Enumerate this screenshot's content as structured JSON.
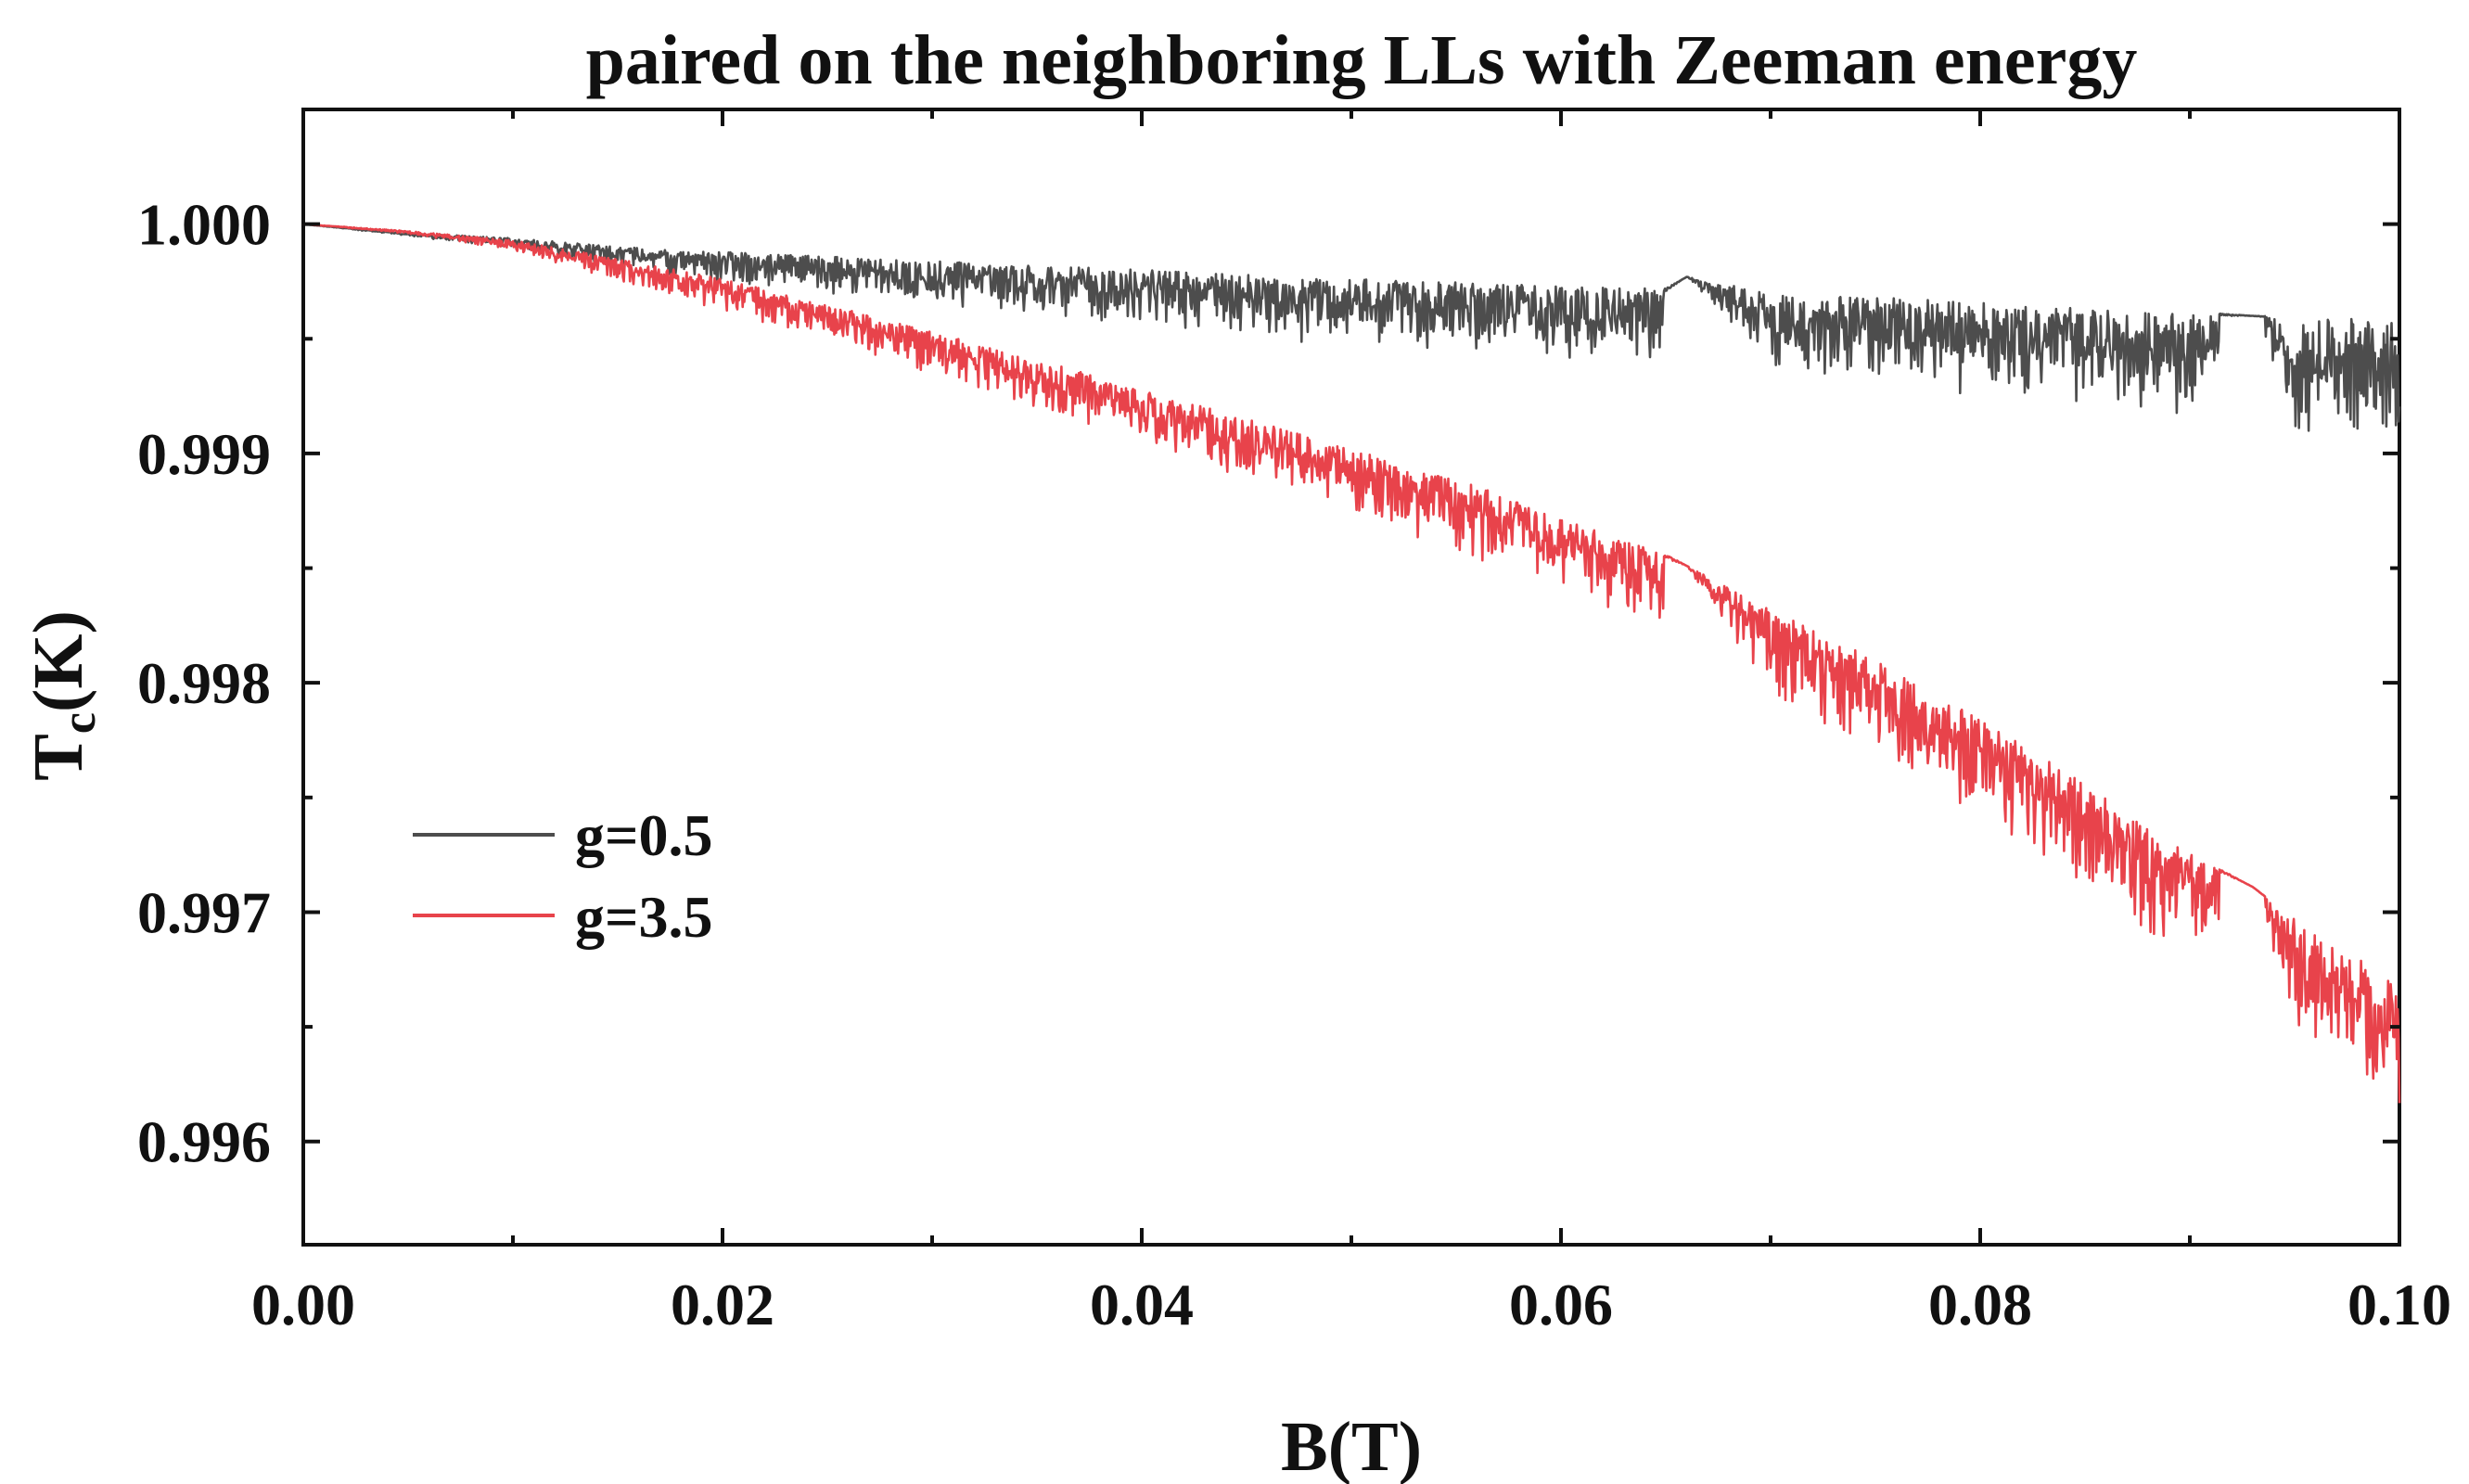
{
  "chart_data": {
    "type": "line",
    "title": "paired on the neighboring LLs with Zeeman energy",
    "xlabel": "B(T)",
    "ylabel_main": "T",
    "ylabel_sub": "c",
    "ylabel_tail": "(K)",
    "xlim": [
      0.0,
      0.1
    ],
    "ylim": [
      0.99555,
      1.0005
    ],
    "x_ticks": [
      0.0,
      0.02,
      0.04,
      0.06,
      0.08,
      0.1
    ],
    "x_tick_labels": [
      "0.00",
      "0.02",
      "0.04",
      "0.06",
      "0.08",
      "0.10"
    ],
    "y_ticks": [
      0.996,
      0.997,
      0.998,
      0.999,
      1.0
    ],
    "y_tick_labels": [
      "0.996",
      "0.997",
      "0.998",
      "0.999",
      "1.000"
    ],
    "grid": false,
    "legend_position": "center-left",
    "series": [
      {
        "name": "g=0.5",
        "color": "#4d4d4d",
        "x": [
          0.0,
          0.005,
          0.01,
          0.015,
          0.02,
          0.025,
          0.03,
          0.035,
          0.04,
          0.045,
          0.05,
          0.055,
          0.06,
          0.065,
          0.066,
          0.07,
          0.075,
          0.08,
          0.085,
          0.09,
          0.093,
          0.095,
          0.1
        ],
        "y": [
          1.0,
          0.99996,
          0.99994,
          0.9999,
          0.99988,
          0.99986,
          0.99984,
          0.99982,
          0.9998,
          0.99978,
          0.99976,
          0.99975,
          0.99973,
          0.99972,
          0.99977,
          0.9997,
          0.99968,
          0.99966,
          0.99964,
          0.99962,
          0.9996,
          0.9996,
          0.99958
        ],
        "spread": [
          0.0,
          1e-05,
          4e-05,
          8e-05,
          0.00012,
          0.00014,
          0.00016,
          0.00018,
          0.0002,
          0.00022,
          0.00025,
          0.00026,
          0.00028,
          0.00028,
          0.0,
          0.0003,
          0.00032,
          0.00034,
          0.00036,
          0.0004,
          0.0,
          0.00042,
          0.00044
        ]
      },
      {
        "name": "g=3.5",
        "color": "#e8434b",
        "x": [
          0.0,
          0.005,
          0.01,
          0.015,
          0.02,
          0.025,
          0.03,
          0.035,
          0.04,
          0.045,
          0.05,
          0.055,
          0.06,
          0.065,
          0.066,
          0.07,
          0.075,
          0.08,
          0.085,
          0.09,
          0.093,
          0.095,
          0.1
        ],
        "y": [
          1.0,
          0.99997,
          0.99993,
          0.99985,
          0.99976,
          0.99965,
          0.99953,
          0.99941,
          0.99928,
          0.99915,
          0.99902,
          0.99889,
          0.99872,
          0.99856,
          0.99851,
          0.99832,
          0.9981,
          0.99784,
          0.99756,
          0.99726,
          0.99711,
          0.99698,
          0.99668
        ],
        "spread": [
          0.0,
          1e-05,
          4e-05,
          8e-05,
          0.00012,
          0.00014,
          0.00016,
          0.00018,
          0.0002,
          0.00022,
          0.00024,
          0.00026,
          0.00028,
          0.0003,
          0.0,
          0.00032,
          0.00034,
          0.00036,
          0.00038,
          0.0004,
          0.0,
          0.00042,
          0.00046
        ]
      }
    ]
  }
}
